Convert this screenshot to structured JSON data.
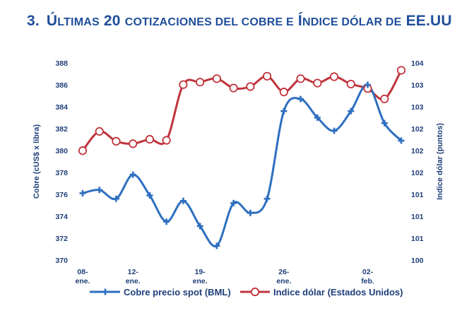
{
  "page": {
    "title_number": "3.",
    "title_first_letter": "Ú",
    "title_small_caps": "ltimas",
    "title_mid1": " 20 ",
    "title_small_caps2": "cotizaciones del cobre e",
    "title_mid2": " Í",
    "title_small_caps3": "ndice dólar de",
    "title_end": " EE.UU"
  },
  "colors": {
    "title": "#1F4E9A",
    "copper_line": "#2E6FC0",
    "copper_marker": "#2E6FC0",
    "dollar_line": "#C0343C",
    "axis_text": "#1F3F7A"
  },
  "chart_data": {
    "type": "line",
    "x_tick_labels": [
      {
        "index": 0,
        "line1": "08-",
        "line2": "ene."
      },
      {
        "index": 3,
        "line1": "12-",
        "line2": "ene."
      },
      {
        "index": 7,
        "line1": "19-",
        "line2": "ene."
      },
      {
        "index": 12,
        "line1": "26-",
        "line2": "ene."
      },
      {
        "index": 17,
        "line1": "02-",
        "line2": "feb."
      }
    ],
    "y_left": {
      "label": "Cobre (cUS$ x libra)",
      "min": 370,
      "max": 388,
      "step": 2,
      "ticks": [
        "370",
        "372",
        "374",
        "376",
        "378",
        "380",
        "382",
        "384",
        "386",
        "388"
      ]
    },
    "y_right": {
      "label": "Indice dólar (puntos)",
      "min": 100,
      "max": 104,
      "ticks": [
        "100",
        "101",
        "101",
        "101",
        "102",
        "102",
        "102",
        "103",
        "103",
        "104"
      ]
    },
    "series": [
      {
        "name": "Cobre precio spot (BML)",
        "axis": "left",
        "values": [
          376.1,
          376.4,
          375.6,
          377.8,
          375.9,
          373.5,
          375.4,
          373.1,
          371.3,
          375.2,
          374.3,
          375.6,
          383.6,
          384.7,
          383.0,
          381.8,
          383.6,
          386.0,
          382.5,
          380.9
        ]
      },
      {
        "name": "Indice dólar (Estados Unidos)",
        "axis": "right",
        "values": [
          102.22,
          102.61,
          102.41,
          102.36,
          102.45,
          102.43,
          103.56,
          103.61,
          103.68,
          103.49,
          103.52,
          103.73,
          103.41,
          103.68,
          103.59,
          103.72,
          103.57,
          103.48,
          103.27,
          103.85
        ]
      }
    ]
  }
}
